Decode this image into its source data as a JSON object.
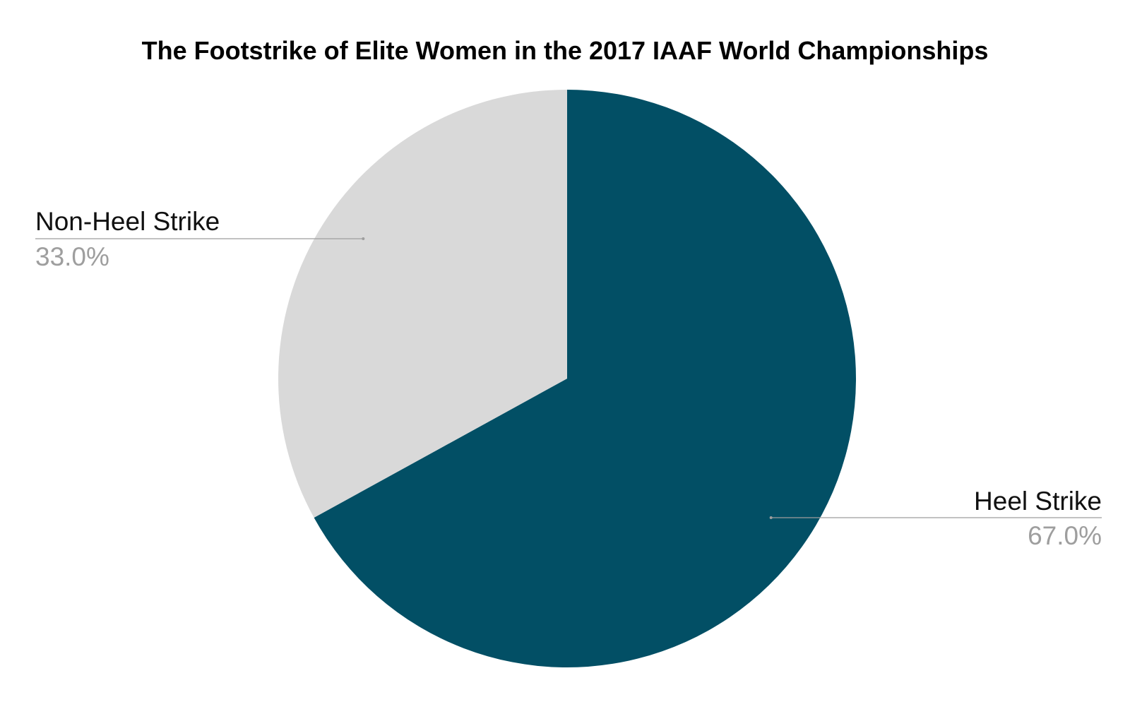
{
  "chart_data": {
    "type": "pie",
    "title": "The Footstrike of Elite Women in the 2017 IAAF World Championships",
    "slices": [
      {
        "label": "Heel Strike",
        "value": 67.0,
        "percent_label": "67.0%",
        "color": "#024f65"
      },
      {
        "label": "Non-Heel Strike",
        "value": 33.0,
        "percent_label": "33.0%",
        "color": "#d9d9d9"
      }
    ],
    "start_angle_deg": 0,
    "direction": "clockwise",
    "legend": "none",
    "label_style": "callout lines with label and percentage"
  },
  "colors": {
    "background": "#ffffff",
    "percent_text": "#9e9e9e",
    "leader_line": "#9e9e9e"
  }
}
